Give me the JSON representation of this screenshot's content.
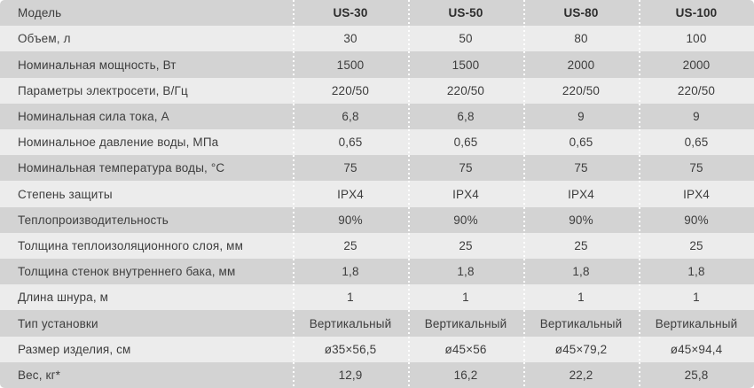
{
  "table": {
    "colors": {
      "row_dark": "#d3d3d3",
      "row_light": "#ececec",
      "text": "#3d3d3d",
      "header_text": "#2d2d2d",
      "separator_dots": "#ffffff"
    },
    "header": {
      "label": "Модель",
      "values": [
        "US-30",
        "US-50",
        "US-80",
        "US-100"
      ]
    },
    "rows": [
      {
        "label": "Объем, л",
        "values": [
          "30",
          "50",
          "80",
          "100"
        ]
      },
      {
        "label": "Номинальная мощность, Вт",
        "values": [
          "1500",
          "1500",
          "2000",
          "2000"
        ]
      },
      {
        "label": "Параметры электросети, В/Гц",
        "values": [
          "220/50",
          "220/50",
          "220/50",
          "220/50"
        ]
      },
      {
        "label": "Номинальная сила тока, А",
        "values": [
          "6,8",
          "6,8",
          "9",
          "9"
        ]
      },
      {
        "label": "Номинальное давление воды, МПа",
        "values": [
          "0,65",
          "0,65",
          "0,65",
          "0,65"
        ]
      },
      {
        "label": "Номинальная температура воды, °С",
        "values": [
          "75",
          "75",
          "75",
          "75"
        ]
      },
      {
        "label": "Степень защиты",
        "values": [
          "IPX4",
          "IPX4",
          "IPX4",
          "IPX4"
        ]
      },
      {
        "label": "Теплопроизводительность",
        "values": [
          "90%",
          "90%",
          "90%",
          "90%"
        ]
      },
      {
        "label": "Толщина теплоизоляционного слоя, мм",
        "values": [
          "25",
          "25",
          "25",
          "25"
        ]
      },
      {
        "label": "Толщина стенок внутреннего бака, мм",
        "values": [
          "1,8",
          "1,8",
          "1,8",
          "1,8"
        ]
      },
      {
        "label": "Длина шнура, м",
        "values": [
          "1",
          "1",
          "1",
          "1"
        ]
      },
      {
        "label": "Тип установки",
        "values": [
          "Вертикальный",
          "Вертикальный",
          "Вертикальный",
          "Вертикальный"
        ]
      },
      {
        "label": "Размер изделия, см",
        "values": [
          "ø35×56,5",
          "ø45×56",
          "ø45×79,2",
          "ø45×94,4"
        ]
      },
      {
        "label": "Вес, кг*",
        "values": [
          "12,9",
          "16,2",
          "22,2",
          "25,8"
        ]
      }
    ]
  }
}
